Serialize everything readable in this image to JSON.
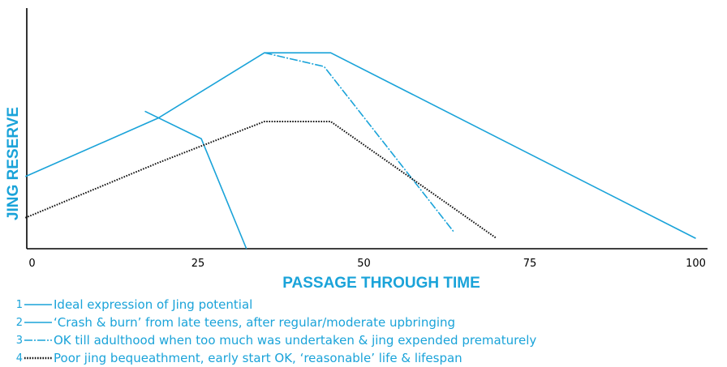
{
  "chart_data": {
    "type": "line",
    "xlabel": "PASSAGE THROUGH TIME",
    "ylabel": "JING RESERVE",
    "xlim": [
      -1,
      102
    ],
    "ylim": [
      0,
      70
    ],
    "xticks": [
      0,
      25,
      50,
      75,
      100
    ],
    "grid": false,
    "legend_position": "bottom",
    "series": [
      {
        "id": "1",
        "name": "Ideal expression of Jing potential",
        "color": "#1aa3d9",
        "dash": "solid",
        "points": [
          [
            -1,
            21
          ],
          [
            19,
            38
          ],
          [
            35,
            57
          ],
          [
            45,
            57
          ],
          [
            100,
            3
          ]
        ]
      },
      {
        "id": "2",
        "name": "‘Crash & burn’ from late teens, after regular/moderate upbringing",
        "color": "#1aa3d9",
        "dash": "solid",
        "points": [
          [
            17,
            40
          ],
          [
            25.5,
            32
          ],
          [
            32.3,
            0
          ]
        ]
      },
      {
        "id": "3",
        "name": "OK till adulthood when too much was undertaken & jing expended prematurely",
        "color": "#1aa3d9",
        "dash": "dashdot",
        "points": [
          [
            35,
            57
          ],
          [
            44,
            53
          ],
          [
            63.5,
            5
          ]
        ]
      },
      {
        "id": "4",
        "name": "Poor jing bequeathment, early start OK, ‘reasonable’ life & lifespan",
        "color": "#111111",
        "dash": "dotted",
        "points": [
          [
            -1,
            9
          ],
          [
            19,
            25
          ],
          [
            35,
            37
          ],
          [
            45,
            37
          ],
          [
            70,
            3
          ]
        ]
      }
    ]
  }
}
